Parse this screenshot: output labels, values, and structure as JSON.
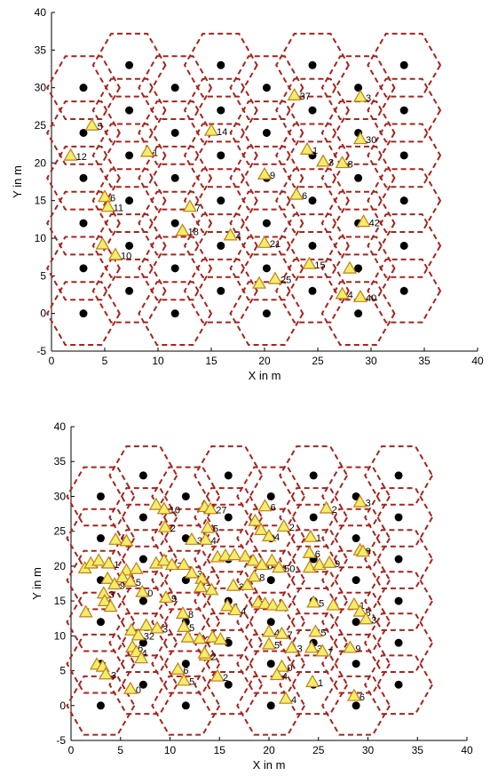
{
  "colors": {
    "hexagon": "#a8231c",
    "base_station": "#000000",
    "user_fill": "#f3ee6a",
    "user_stroke": "#c07f1a",
    "axis": "#000000",
    "label": "#000000"
  },
  "icons": {
    "base_station": "filled-circle",
    "user": "yellow-triangle"
  },
  "chart_data": [
    {
      "type": "scatter",
      "xlabel": "X in m",
      "ylabel": "Y in m",
      "xlim": [
        0,
        40
      ],
      "ylim": [
        -5,
        40
      ],
      "xticks": [
        "0",
        "5",
        "10",
        "15",
        "20",
        "25",
        "30",
        "35",
        "40"
      ],
      "yticks": [
        "-5",
        "0",
        "5",
        "10",
        "15",
        "20",
        "25",
        "30",
        "35",
        "40"
      ],
      "grid": false,
      "hexagon_cell_radius": 3.4,
      "base_stations": [
        [
          3,
          0
        ],
        [
          3,
          6
        ],
        [
          3,
          12
        ],
        [
          3,
          18
        ],
        [
          3,
          24
        ],
        [
          3,
          30
        ],
        [
          7.3,
          3
        ],
        [
          7.3,
          9
        ],
        [
          7.3,
          15
        ],
        [
          7.3,
          21
        ],
        [
          7.3,
          27
        ],
        [
          7.3,
          33
        ],
        [
          11.6,
          0
        ],
        [
          11.6,
          6
        ],
        [
          11.6,
          12
        ],
        [
          11.6,
          18
        ],
        [
          11.6,
          24
        ],
        [
          11.6,
          30
        ],
        [
          15.9,
          3
        ],
        [
          15.9,
          9
        ],
        [
          15.9,
          15
        ],
        [
          15.9,
          21
        ],
        [
          15.9,
          27
        ],
        [
          15.9,
          33
        ],
        [
          20.2,
          0
        ],
        [
          20.2,
          6
        ],
        [
          20.2,
          12
        ],
        [
          20.2,
          18
        ],
        [
          20.2,
          24
        ],
        [
          20.2,
          30
        ],
        [
          24.5,
          3
        ],
        [
          24.5,
          9
        ],
        [
          24.5,
          15
        ],
        [
          24.5,
          21
        ],
        [
          24.5,
          27
        ],
        [
          24.5,
          33
        ],
        [
          28.8,
          0
        ],
        [
          28.8,
          6
        ],
        [
          28.8,
          12
        ],
        [
          28.8,
          18
        ],
        [
          28.8,
          24
        ],
        [
          28.8,
          30
        ],
        [
          33.1,
          3
        ],
        [
          33.1,
          9
        ],
        [
          33.1,
          15
        ],
        [
          33.1,
          21
        ],
        [
          33.1,
          27
        ],
        [
          33.1,
          33
        ]
      ],
      "users": [
        {
          "x": 22.8,
          "y": 29,
          "label": "37"
        },
        {
          "x": 29,
          "y": 28.8,
          "label": "3"
        },
        {
          "x": 3.8,
          "y": 25,
          "label": "5"
        },
        {
          "x": 15,
          "y": 24.3,
          "label": "14"
        },
        {
          "x": 29,
          "y": 23.2,
          "label": "30"
        },
        {
          "x": 1.8,
          "y": 21,
          "label": "12"
        },
        {
          "x": 9,
          "y": 21.5,
          "label": "1"
        },
        {
          "x": 24,
          "y": 21.8,
          "label": "1"
        },
        {
          "x": 25.5,
          "y": 20.2,
          "label": "3"
        },
        {
          "x": 27.3,
          "y": 20,
          "label": "8"
        },
        {
          "x": 20,
          "y": 18.5,
          "label": "9"
        },
        {
          "x": 5,
          "y": 15.5,
          "label": "6"
        },
        {
          "x": 5.3,
          "y": 14.2,
          "label": "11"
        },
        {
          "x": 13,
          "y": 14.2,
          "label": "7"
        },
        {
          "x": 23,
          "y": 15.8,
          "label": "6"
        },
        {
          "x": 29.3,
          "y": 12.2,
          "label": "42"
        },
        {
          "x": 12.3,
          "y": 11,
          "label": "18"
        },
        {
          "x": 16.8,
          "y": 10.4,
          "label": "4"
        },
        {
          "x": 20,
          "y": 9.4,
          "label": "21"
        },
        {
          "x": 4.8,
          "y": 9.2,
          "label": ""
        },
        {
          "x": 6,
          "y": 7.8,
          "label": "10"
        },
        {
          "x": 24.2,
          "y": 6.6,
          "label": "15"
        },
        {
          "x": 28,
          "y": 6,
          "label": "4"
        },
        {
          "x": 21,
          "y": 4.6,
          "label": "25"
        },
        {
          "x": 19.5,
          "y": 4,
          "label": ""
        },
        {
          "x": 27.3,
          "y": 2.6,
          "label": "4"
        },
        {
          "x": 29,
          "y": 2.2,
          "label": "40"
        }
      ]
    },
    {
      "type": "scatter",
      "xlabel": "X in m",
      "ylabel": "Y in m",
      "xlim": [
        0,
        40
      ],
      "ylim": [
        -5,
        40
      ],
      "xticks": [
        "0",
        "5",
        "10",
        "15",
        "20",
        "25",
        "30",
        "35",
        "40"
      ],
      "yticks": [
        "-5",
        "0",
        "5",
        "10",
        "15",
        "20",
        "25",
        "30",
        "35",
        "40"
      ],
      "grid": false,
      "hexagon_cell_radius": 3.4,
      "base_stations": [
        [
          3,
          0
        ],
        [
          3,
          6
        ],
        [
          3,
          12
        ],
        [
          3,
          18
        ],
        [
          3,
          24
        ],
        [
          3,
          30
        ],
        [
          7.3,
          3
        ],
        [
          7.3,
          9
        ],
        [
          7.3,
          15
        ],
        [
          7.3,
          21
        ],
        [
          7.3,
          27
        ],
        [
          7.3,
          33
        ],
        [
          11.6,
          0
        ],
        [
          11.6,
          6
        ],
        [
          11.6,
          12
        ],
        [
          11.6,
          18
        ],
        [
          11.6,
          24
        ],
        [
          11.6,
          30
        ],
        [
          15.9,
          3
        ],
        [
          15.9,
          9
        ],
        [
          15.9,
          15
        ],
        [
          15.9,
          21
        ],
        [
          15.9,
          27
        ],
        [
          15.9,
          33
        ],
        [
          20.2,
          0
        ],
        [
          20.2,
          6
        ],
        [
          20.2,
          12
        ],
        [
          20.2,
          18
        ],
        [
          20.2,
          24
        ],
        [
          20.2,
          30
        ],
        [
          24.5,
          3
        ],
        [
          24.5,
          9
        ],
        [
          24.5,
          15
        ],
        [
          24.5,
          21
        ],
        [
          24.5,
          27
        ],
        [
          24.5,
          33
        ],
        [
          28.8,
          0
        ],
        [
          28.8,
          6
        ],
        [
          28.8,
          12
        ],
        [
          28.8,
          18
        ],
        [
          28.8,
          24
        ],
        [
          28.8,
          30
        ],
        [
          33.1,
          3
        ],
        [
          33.1,
          9
        ],
        [
          33.1,
          15
        ],
        [
          33.1,
          21
        ],
        [
          33.1,
          27
        ],
        [
          33.1,
          33
        ]
      ],
      "users": [
        {
          "x": 8.6,
          "y": 28.8,
          "label": ""
        },
        {
          "x": 9.4,
          "y": 28.2,
          "label": "10"
        },
        {
          "x": 13.5,
          "y": 28.5,
          "label": "1"
        },
        {
          "x": 14.1,
          "y": 28.2,
          "label": "27"
        },
        {
          "x": 19.6,
          "y": 28.6,
          "label": "6"
        },
        {
          "x": 25.8,
          "y": 28.3,
          "label": "2"
        },
        {
          "x": 29.2,
          "y": 29.2,
          "label": "3"
        },
        {
          "x": 9.5,
          "y": 25.6,
          "label": "2"
        },
        {
          "x": 13.8,
          "y": 25.5,
          "label": "5"
        },
        {
          "x": 18.6,
          "y": 26.5,
          "label": ""
        },
        {
          "x": 19.2,
          "y": 25.2,
          "label": ""
        },
        {
          "x": 21.5,
          "y": 25.7,
          "label": "2"
        },
        {
          "x": 20,
          "y": 24.3,
          "label": "4"
        },
        {
          "x": 24.2,
          "y": 24.2,
          "label": "1"
        },
        {
          "x": 4.5,
          "y": 23.8,
          "label": "3"
        },
        {
          "x": 5.6,
          "y": 23.6,
          "label": ""
        },
        {
          "x": 12.2,
          "y": 23.8,
          "label": "3"
        },
        {
          "x": 13.6,
          "y": 23.8,
          "label": "4"
        },
        {
          "x": 24.1,
          "y": 21.9,
          "label": "6"
        },
        {
          "x": 29.2,
          "y": 22.3,
          "label": "8"
        },
        {
          "x": 29.5,
          "y": 22.1,
          "label": ""
        },
        {
          "x": 1.4,
          "y": 19.7,
          "label": ""
        },
        {
          "x": 2,
          "y": 20.4,
          "label": ""
        },
        {
          "x": 2.8,
          "y": 20.8,
          "label": ""
        },
        {
          "x": 3.8,
          "y": 20.4,
          "label": "1"
        },
        {
          "x": 5.6,
          "y": 19.4,
          "label": ""
        },
        {
          "x": 6.6,
          "y": 19.6,
          "label": ""
        },
        {
          "x": 8.6,
          "y": 20.4,
          "label": ""
        },
        {
          "x": 9.4,
          "y": 20.8,
          "label": ""
        },
        {
          "x": 10.2,
          "y": 20.2,
          "label": "7"
        },
        {
          "x": 11.4,
          "y": 20.2,
          "label": ""
        },
        {
          "x": 12.2,
          "y": 19,
          "label": "3"
        },
        {
          "x": 13.2,
          "y": 18.2,
          "label": ""
        },
        {
          "x": 14.8,
          "y": 21.3,
          "label": ""
        },
        {
          "x": 15.6,
          "y": 21.5,
          "label": ""
        },
        {
          "x": 16.5,
          "y": 21.6,
          "label": ""
        },
        {
          "x": 17.6,
          "y": 21.4,
          "label": ""
        },
        {
          "x": 18.4,
          "y": 20.8,
          "label": ""
        },
        {
          "x": 19.3,
          "y": 20.2,
          "label": "0"
        },
        {
          "x": 20.3,
          "y": 20.8,
          "label": ""
        },
        {
          "x": 21,
          "y": 19.8,
          "label": "50"
        },
        {
          "x": 24.1,
          "y": 19.8,
          "label": ""
        },
        {
          "x": 25.1,
          "y": 20.2,
          "label": ""
        },
        {
          "x": 26.1,
          "y": 20.5,
          "label": "9"
        },
        {
          "x": 3.7,
          "y": 18.2,
          "label": ""
        },
        {
          "x": 4.4,
          "y": 17.4,
          "label": "9"
        },
        {
          "x": 5.2,
          "y": 18.4,
          "label": ""
        },
        {
          "x": 6,
          "y": 17.8,
          "label": "5"
        },
        {
          "x": 7.2,
          "y": 16.3,
          "label": "0"
        },
        {
          "x": 9.6,
          "y": 15.5,
          "label": "9"
        },
        {
          "x": 13.1,
          "y": 17,
          "label": "7"
        },
        {
          "x": 14.2,
          "y": 16.6,
          "label": ""
        },
        {
          "x": 16.4,
          "y": 17.2,
          "label": "3"
        },
        {
          "x": 17.8,
          "y": 17.3,
          "label": ""
        },
        {
          "x": 18.5,
          "y": 18.5,
          "label": "8"
        },
        {
          "x": 3.3,
          "y": 16.1,
          "label": "3"
        },
        {
          "x": 3.4,
          "y": 15,
          "label": ""
        },
        {
          "x": 4,
          "y": 14.2,
          "label": ""
        },
        {
          "x": 1.5,
          "y": 13.4,
          "label": ""
        },
        {
          "x": 15.8,
          "y": 14.3,
          "label": "6"
        },
        {
          "x": 16.6,
          "y": 13.7,
          "label": "4"
        },
        {
          "x": 18.9,
          "y": 14.8,
          "label": ""
        },
        {
          "x": 19.6,
          "y": 14.6,
          "label": ""
        },
        {
          "x": 20.4,
          "y": 14.4,
          "label": ""
        },
        {
          "x": 21.3,
          "y": 14.3,
          "label": ""
        },
        {
          "x": 24.5,
          "y": 14.8,
          "label": "5"
        },
        {
          "x": 26.5,
          "y": 14.4,
          "label": ""
        },
        {
          "x": 28.6,
          "y": 14.5,
          "label": "1"
        },
        {
          "x": 29.2,
          "y": 13.5,
          "label": "8"
        },
        {
          "x": 29.8,
          "y": 12.4,
          "label": "3"
        },
        {
          "x": 11.3,
          "y": 13.2,
          "label": "8"
        },
        {
          "x": 11.4,
          "y": 11.3,
          "label": "5"
        },
        {
          "x": 7.6,
          "y": 11.5,
          "label": ""
        },
        {
          "x": 8.7,
          "y": 11.1,
          "label": "3"
        },
        {
          "x": 6.1,
          "y": 10.8,
          "label": ""
        },
        {
          "x": 6.8,
          "y": 10.1,
          "label": "32"
        },
        {
          "x": 11.8,
          "y": 9.8,
          "label": ""
        },
        {
          "x": 13,
          "y": 9.6,
          "label": "2"
        },
        {
          "x": 14.3,
          "y": 9.8,
          "label": ""
        },
        {
          "x": 15.1,
          "y": 9.5,
          "label": "5"
        },
        {
          "x": 20,
          "y": 10.6,
          "label": "4"
        },
        {
          "x": 21.3,
          "y": 10.3,
          "label": "7"
        },
        {
          "x": 24.7,
          "y": 10.6,
          "label": "5"
        },
        {
          "x": 20,
          "y": 8.8,
          "label": "5"
        },
        {
          "x": 22.3,
          "y": 8.3,
          "label": "3"
        },
        {
          "x": 24.3,
          "y": 8.3,
          "label": "3"
        },
        {
          "x": 25.4,
          "y": 7.8,
          "label": "7"
        },
        {
          "x": 28.2,
          "y": 8.3,
          "label": "9"
        },
        {
          "x": 6.2,
          "y": 8.4,
          "label": "6"
        },
        {
          "x": 6.6,
          "y": 7.7,
          "label": "4"
        },
        {
          "x": 7.1,
          "y": 6.8,
          "label": ""
        },
        {
          "x": 13.6,
          "y": 7.2,
          "label": "2"
        },
        {
          "x": 13.5,
          "y": 7.5,
          "label": ""
        },
        {
          "x": 2.6,
          "y": 5.9,
          "label": "1"
        },
        {
          "x": 3.2,
          "y": 5.6,
          "label": ""
        },
        {
          "x": 3.5,
          "y": 4.5,
          "label": "3"
        },
        {
          "x": 10.8,
          "y": 5.2,
          "label": "6"
        },
        {
          "x": 11.4,
          "y": 3.6,
          "label": "5"
        },
        {
          "x": 14.8,
          "y": 4.2,
          "label": "2"
        },
        {
          "x": 21.3,
          "y": 5.6,
          "label": "0"
        },
        {
          "x": 20.8,
          "y": 4.4,
          "label": "4"
        },
        {
          "x": 24.4,
          "y": 3.4,
          "label": "1"
        },
        {
          "x": 6,
          "y": 2.4,
          "label": "0"
        },
        {
          "x": 28.6,
          "y": 1.4,
          "label": "6"
        },
        {
          "x": 21.7,
          "y": 1,
          "label": "4"
        }
      ]
    }
  ]
}
